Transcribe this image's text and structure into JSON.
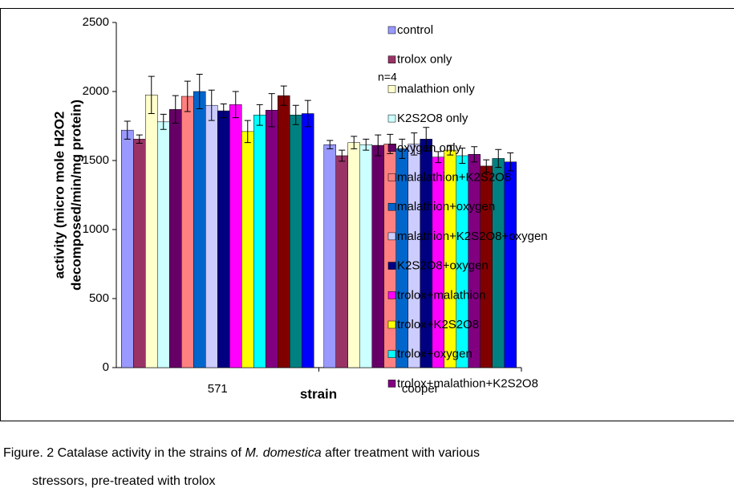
{
  "chart_data": {
    "type": "bar",
    "categories": [
      "571",
      "cooper"
    ],
    "xlabel": "strain",
    "ylabel": [
      "activity (micro mole H2O2",
      "decomposed/min/mg protein)"
    ],
    "annotation": "n=4",
    "ylim": [
      0,
      2500
    ],
    "yticks": [
      0,
      500,
      1000,
      1500,
      2000,
      2500
    ],
    "caption": [
      "Figure. 2  Catalase activity in the strains of ",
      "M. domestica",
      " after treatment with various",
      "stressors, pre-treated with trolox"
    ],
    "series": [
      {
        "name": "control",
        "color": "#9999ff",
        "values": [
          1720,
          1615
        ],
        "errors": [
          65,
          30
        ]
      },
      {
        "name": "trolox only",
        "color": "#993366",
        "values": [
          1655,
          1535
        ],
        "errors": [
          30,
          40
        ]
      },
      {
        "name": "malathion only",
        "color": "#ffffcc",
        "values": [
          1975,
          1630
        ],
        "errors": [
          135,
          45
        ]
      },
      {
        "name": "K2S2O8 only",
        "color": "#ccffff",
        "values": [
          1780,
          1615
        ],
        "errors": [
          55,
          40
        ]
      },
      {
        "name": "oxygen only",
        "color": "#660066",
        "values": [
          1870,
          1610
        ],
        "errors": [
          100,
          75
        ]
      },
      {
        "name": "malalathion+K2S2O8",
        "color": "#ff8080",
        "values": [
          1965,
          1620
        ],
        "errors": [
          110,
          70
        ]
      },
      {
        "name": "malathion+oxygen",
        "color": "#0066cc",
        "values": [
          2000,
          1585
        ],
        "errors": [
          125,
          70
        ]
      },
      {
        "name": "malathion+K2S2O8+oxygen",
        "color": "#ccccff",
        "values": [
          1900,
          1620
        ],
        "errors": [
          110,
          80
        ]
      },
      {
        "name": "K2S2O8+oxygen",
        "color": "#000080",
        "values": [
          1860,
          1655
        ],
        "errors": [
          50,
          85
        ]
      },
      {
        "name": "trolox+malathion",
        "color": "#ff00ff",
        "values": [
          1905,
          1525
        ],
        "errors": [
          95,
          40
        ]
      },
      {
        "name": "trolox+K2S2O8",
        "color": "#ffff00",
        "values": [
          1710,
          1575
        ],
        "errors": [
          80,
          35
        ]
      },
      {
        "name": "trolox+oxygen",
        "color": "#00ffff",
        "values": [
          1830,
          1535
        ],
        "errors": [
          75,
          55
        ]
      },
      {
        "name": "trolox+malathion+K2S2O8",
        "color": "#800080",
        "values": [
          1865,
          1545
        ],
        "errors": [
          120,
          55
        ]
      },
      {
        "name": null,
        "color": "#800000",
        "values": [
          1970,
          1460
        ],
        "errors": [
          70,
          45
        ]
      },
      {
        "name": null,
        "color": "#008080",
        "values": [
          1830,
          1515
        ],
        "errors": [
          70,
          65
        ]
      },
      {
        "name": null,
        "color": "#0000ff",
        "values": [
          1840,
          1490
        ],
        "errors": [
          95,
          65
        ]
      }
    ]
  }
}
